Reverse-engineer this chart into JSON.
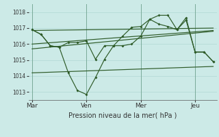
{
  "background_color": "#cceae7",
  "grid_color": "#b0d8d4",
  "line_color": "#2d5a27",
  "title": "Pression niveau de la mer( hPa )",
  "ylim": [
    1012.5,
    1018.5
  ],
  "yticks": [
    1013,
    1014,
    1015,
    1016,
    1017,
    1018
  ],
  "xtick_labels": [
    "Mar",
    "Ven",
    "Mer",
    "Jeu"
  ],
  "xtick_pos": [
    0,
    30,
    60,
    90
  ],
  "vline_pos": [
    0,
    30,
    60,
    90
  ],
  "xlim": [
    -2,
    102
  ],
  "series_main": {
    "x": [
      0,
      5,
      10,
      15,
      20,
      25,
      30,
      35,
      40,
      45,
      50,
      55,
      60,
      65,
      70,
      75,
      80,
      85,
      90,
      95,
      100
    ],
    "y": [
      1016.9,
      1016.6,
      1015.9,
      1015.8,
      1014.2,
      1013.1,
      1012.85,
      1013.9,
      1015.05,
      1015.9,
      1015.9,
      1016.0,
      1016.5,
      1017.55,
      1017.8,
      1017.8,
      1016.9,
      1017.65,
      1015.5,
      1015.5,
      1014.9
    ]
  },
  "series_upper": {
    "x": [
      0,
      5,
      10,
      15,
      20,
      25,
      30,
      35,
      40,
      45,
      50,
      55,
      60,
      65,
      70,
      75,
      80,
      85,
      90,
      95,
      100
    ],
    "y": [
      1016.9,
      1016.6,
      1015.9,
      1015.8,
      1016.1,
      1016.1,
      1016.2,
      1015.05,
      1015.9,
      1015.9,
      1016.5,
      1017.05,
      1017.1,
      1017.55,
      1017.25,
      1017.1,
      1016.9,
      1017.5,
      1015.5,
      1015.5,
      1014.9
    ]
  },
  "series_trend1": {
    "x": [
      0,
      100
    ],
    "y": [
      1016.85,
      1017.0
    ]
  },
  "series_trend2": {
    "x": [
      0,
      100
    ],
    "y": [
      1016.0,
      1016.85
    ]
  },
  "series_trend3": {
    "x": [
      0,
      100
    ],
    "y": [
      1015.7,
      1016.8
    ]
  },
  "series_flat": {
    "x": [
      0,
      100
    ],
    "y": [
      1014.2,
      1014.6
    ]
  }
}
